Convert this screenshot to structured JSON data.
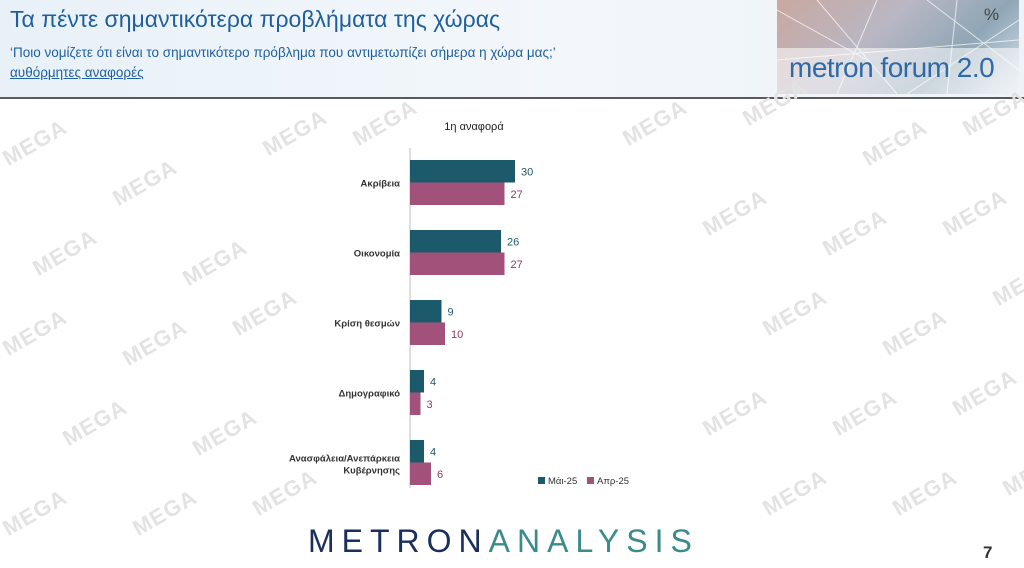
{
  "header": {
    "title": "Τα πέντε σημαντικότερα προβλήματα της χώρας",
    "subtitle": "‘Ποιο νομίζετε ότι είναι το σημαντικότερο πρόβλημα που αντιμετωπίζει σήμερα η χώρα μας;’",
    "subtitle_link": "αυθόρμητες αναφορές",
    "logo_text": "metron forum 2.0",
    "logo_symbol": "%"
  },
  "footer": {
    "brand_part1": "METRON",
    "brand_part2": "ANALYSIS",
    "page_number": "7"
  },
  "watermark_text": "MEGA",
  "colors": {
    "series_may": "#1c5a6b",
    "series_apr": "#a2517a",
    "label_may": "#1c5a6b",
    "label_apr": "#8c3a66"
  },
  "chart_data": {
    "type": "bar",
    "orientation": "horizontal",
    "title": "1η αναφορά",
    "categories": [
      "Ακρίβεια",
      "Οικονομία",
      "Κρίση θεσμών",
      "Δημογραφικό",
      "Ανασφάλεια/Ανεπάρκεια Κυβέρνησης"
    ],
    "series": [
      {
        "name": "Μάι-25",
        "values": [
          30,
          26,
          9,
          4,
          4
        ]
      },
      {
        "name": "Απρ-25",
        "values": [
          27,
          27,
          10,
          3,
          6
        ]
      }
    ],
    "grid": false,
    "legend": "bottom-right"
  }
}
